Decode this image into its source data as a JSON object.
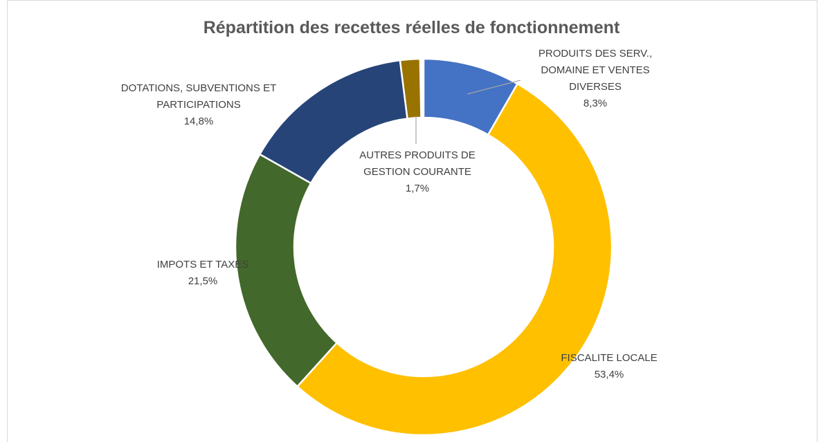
{
  "chart_data": {
    "type": "donut",
    "title": "Répartition des recettes réelles de fonctionnement",
    "categories": [
      "PRODUITS DES SERV., DOMAINE ET VENTES DIVERSES",
      "FISCALITE LOCALE",
      "IMPOTS ET TAXES",
      "DOTATIONS, SUBVENTIONS ET PARTICIPATIONS",
      "AUTRES PRODUITS DE GESTION COURANTE"
    ],
    "values": [
      8.3,
      53.4,
      21.5,
      14.8,
      1.7
    ],
    "value_labels": [
      "8,3%",
      "53,4%",
      "21,5%",
      "14,8%",
      "1,7%"
    ],
    "colors": [
      "#4472c4",
      "#ffc000",
      "#43682b",
      "#264478",
      "#997300"
    ]
  }
}
